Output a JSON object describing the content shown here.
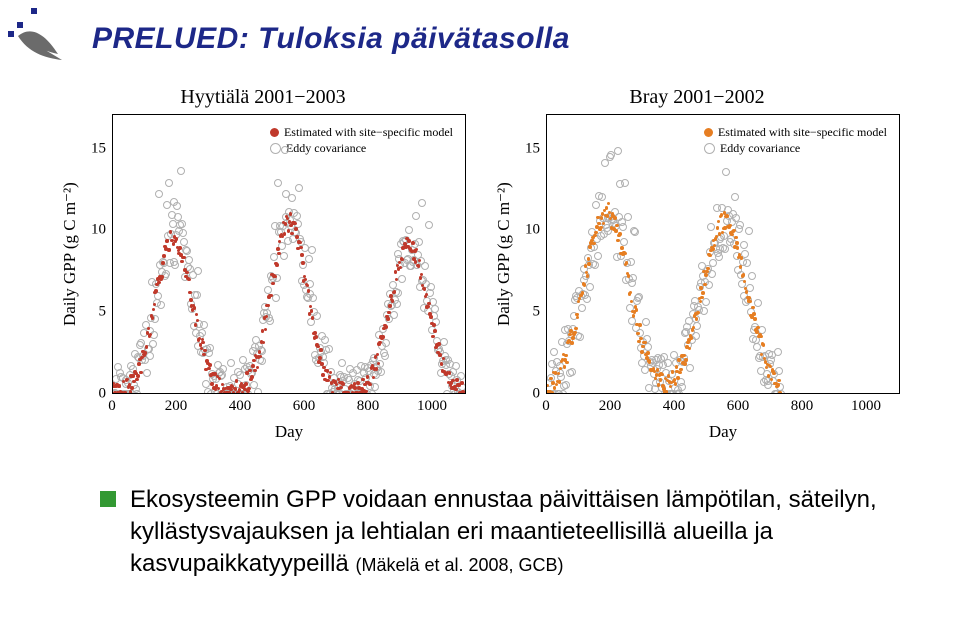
{
  "title": "PRELUED: Tuloksia päivätasolla",
  "title_color": "#1d2888",
  "logo": {
    "squares_color": "#1d2888",
    "swoosh_color": "#6b6b6b"
  },
  "bullet": {
    "square_color": "#339933",
    "text_parts": {
      "main": "Ekosysteemin GPP voidaan ennustaa päivittäisen lämpötilan, säteilyn, kyllästysvajauksen ja lehtialan eri maantieteellisillä alueilla ja kasvupaikkatyypeillä ",
      "cite": "(Mäkelä et al. 2008, GCB)"
    }
  },
  "charts": [
    {
      "title": "Hyytiälä 2001−2003",
      "type": "scatter",
      "xlabel": "Day",
      "ylabel": "Daily GPP (g C m⁻²)",
      "xlim": [
        0,
        1100
      ],
      "ylim": [
        0,
        17
      ],
      "xticks": [
        0,
        200,
        400,
        600,
        800,
        1000
      ],
      "yticks": [
        0,
        5,
        10,
        15
      ],
      "background_color": "#ffffff",
      "border_color": "#000000",
      "tick_fontsize": 15,
      "label_fontsize": 17,
      "title_fontsize": 20,
      "legend": {
        "items": [
          {
            "label": "Estimated with site−specific model",
            "marker": "filled",
            "color": "#c0392b"
          },
          {
            "label": "Eddy covariance",
            "marker": "open",
            "color": "#b0b0b0"
          }
        ],
        "position": "top-right",
        "fontsize": 12
      },
      "series": [
        {
          "name": "eddy",
          "color": "#b0b0b0",
          "fill_opacity": 0.0,
          "border_width": 1.2,
          "size": 6
        },
        {
          "name": "model",
          "color": "#c0392b",
          "fill_opacity": 1.0,
          "border_width": 0,
          "size": 3.5
        }
      ]
    },
    {
      "title": "Bray 2001−2002",
      "type": "scatter",
      "xlabel": "Day",
      "ylabel": "Daily GPP (g C m⁻²)",
      "xlim": [
        0,
        1100
      ],
      "ylim": [
        0,
        17
      ],
      "xticks": [
        0,
        200,
        400,
        600,
        800,
        1000
      ],
      "yticks": [
        0,
        5,
        10,
        15
      ],
      "background_color": "#ffffff",
      "border_color": "#000000",
      "tick_fontsize": 15,
      "label_fontsize": 17,
      "title_fontsize": 20,
      "legend": {
        "items": [
          {
            "label": "Estimated with site−specific model",
            "marker": "filled",
            "color": "#e67e22"
          },
          {
            "label": "Eddy covariance",
            "marker": "open",
            "color": "#b0b0b0"
          }
        ],
        "position": "top-right",
        "fontsize": 12
      },
      "series": [
        {
          "name": "eddy",
          "color": "#b0b0b0",
          "fill_opacity": 0.0,
          "border_width": 1.2,
          "size": 6
        },
        {
          "name": "model",
          "color": "#e67e22",
          "fill_opacity": 1.0,
          "border_width": 0,
          "size": 3.5
        }
      ]
    }
  ]
}
